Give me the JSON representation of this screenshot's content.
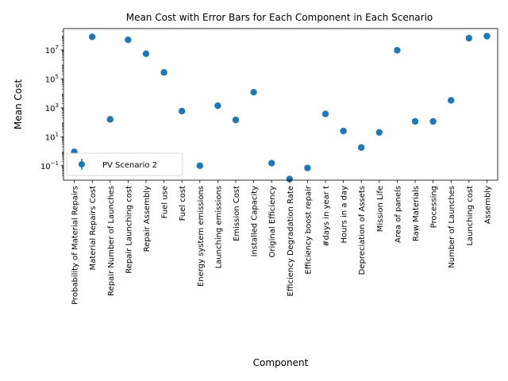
{
  "chart_data": {
    "type": "scatter",
    "title": "Mean Cost with Error Bars for Each Component in Each Scenario",
    "xlabel": "Component",
    "ylabel": "Mean Cost",
    "yscale": "log",
    "ylim": [
      0.01,
      300000000
    ],
    "yticks": [
      {
        "value": 0.1,
        "base": "10",
        "exp": "−1"
      },
      {
        "value": 10,
        "base": "10",
        "exp": "1"
      },
      {
        "value": 1000,
        "base": "10",
        "exp": "3"
      },
      {
        "value": 100000,
        "base": "10",
        "exp": "5"
      },
      {
        "value": 10000000,
        "base": "10",
        "exp": "7"
      }
    ],
    "grid": false,
    "legend_position": "lower left",
    "categories": [
      "Probability of Material Repairs",
      "Material Repairs Cost",
      "Repair Number of Launches",
      "Repair Launching cost",
      "Repair Assembly",
      "Fuel use",
      "Fuel cost",
      "Energy system emissions",
      "Launching emissions",
      "Emission Cost",
      "Installed Capacity",
      "Original Efficiency",
      "Efficiency Degradation Rate",
      "Efficiency boost repair",
      "#days in year t",
      "Hours in a day",
      "Depreciation of Assets",
      "Mission Life",
      "Area of panels",
      "Raw Materials",
      "Processing",
      "Number of Launches",
      "Launching cost",
      "Assembly"
    ],
    "series": [
      {
        "name": "PV Scenario 2",
        "color": "#1f77b4",
        "values": [
          0.9,
          80000000,
          160,
          50000000,
          5500000,
          280000,
          600,
          0.1,
          1400,
          145,
          12000,
          0.15,
          0.012,
          0.07,
          380,
          25,
          1.8,
          20,
          9500000,
          115,
          115,
          3300,
          65000000,
          90000000
        ]
      }
    ]
  }
}
